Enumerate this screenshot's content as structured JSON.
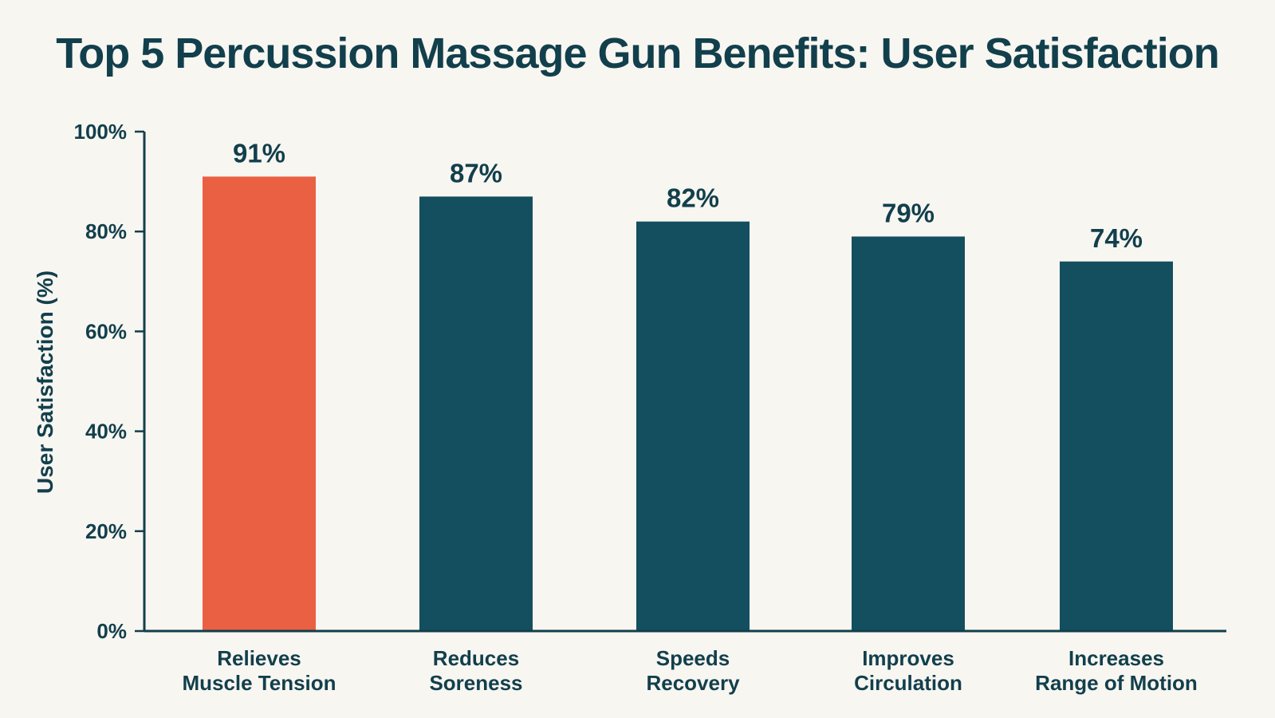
{
  "chart_data": {
    "type": "bar",
    "title": "Top 5 Percussion Massage Gun Benefits: User Satisfaction",
    "xlabel": "",
    "ylabel": "User Satisfaction (%)",
    "categories": [
      [
        "Relieves",
        "Muscle Tension"
      ],
      [
        "Reduces",
        "Soreness"
      ],
      [
        "Speeds",
        "Recovery"
      ],
      [
        "Improves",
        "Circulation"
      ],
      [
        "Increases",
        "Range of Motion"
      ]
    ],
    "values": [
      91,
      87,
      82,
      79,
      74
    ],
    "value_labels": [
      "91%",
      "87%",
      "82%",
      "79%",
      "74%"
    ],
    "ylim": [
      0,
      100
    ],
    "yticks": [
      0,
      20,
      40,
      60,
      80,
      100
    ],
    "ytick_labels": [
      "0%",
      "20%",
      "40%",
      "60%",
      "80%",
      "100%"
    ],
    "grid": false,
    "colors": {
      "highlight": "#ea6043",
      "bar": "#134f5e",
      "axis": "#123f4c",
      "text": "#123f4c",
      "background": "#f8f6f1"
    },
    "highlight_index": 0
  }
}
